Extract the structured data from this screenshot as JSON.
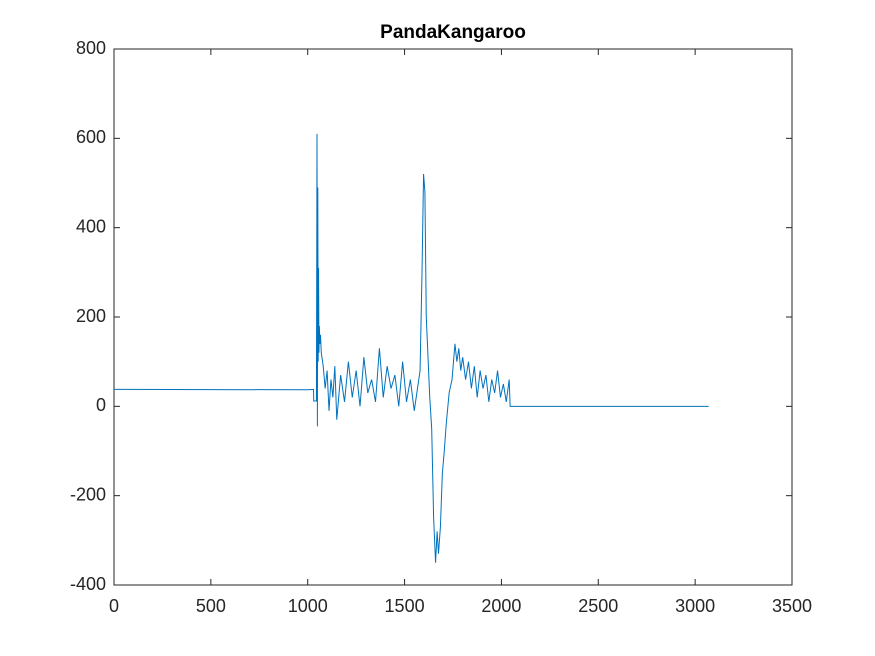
{
  "chart_data": {
    "type": "line",
    "title": "PandaKangaroo",
    "x": [
      0,
      1000,
      1030,
      1031,
      1045,
      1048,
      1050,
      1052,
      1054,
      1056,
      1058,
      1060,
      1063,
      1066,
      1070,
      1080,
      1090,
      1100,
      1110,
      1120,
      1130,
      1140,
      1150,
      1170,
      1190,
      1210,
      1230,
      1250,
      1270,
      1290,
      1310,
      1330,
      1350,
      1370,
      1390,
      1410,
      1430,
      1450,
      1470,
      1490,
      1510,
      1530,
      1550,
      1570,
      1580,
      1590,
      1598,
      1605,
      1612,
      1620,
      1630,
      1640,
      1650,
      1660,
      1668,
      1675,
      1685,
      1695,
      1705,
      1715,
      1730,
      1745,
      1760,
      1770,
      1780,
      1790,
      1800,
      1815,
      1830,
      1845,
      1860,
      1875,
      1890,
      1905,
      1920,
      1935,
      1950,
      1965,
      1980,
      1995,
      2010,
      2025,
      2040,
      2045,
      2050,
      3070
    ],
    "series": [
      {
        "color": "#0072bd",
        "values": [
          38,
          37,
          38,
          12,
          12,
          610,
          -45,
          490,
          100,
          310,
          120,
          180,
          140,
          160,
          120,
          90,
          40,
          80,
          -10,
          60,
          20,
          90,
          -30,
          70,
          10,
          100,
          20,
          80,
          0,
          110,
          30,
          60,
          10,
          130,
          20,
          90,
          40,
          70,
          0,
          100,
          10,
          60,
          -10,
          50,
          80,
          300,
          520,
          480,
          200,
          120,
          20,
          -50,
          -250,
          -350,
          -280,
          -330,
          -270,
          -150,
          -100,
          -40,
          30,
          60,
          140,
          100,
          130,
          80,
          110,
          60,
          100,
          40,
          90,
          20,
          80,
          40,
          70,
          10,
          60,
          30,
          80,
          20,
          50,
          10,
          60,
          0,
          0,
          0
        ]
      }
    ],
    "xlim": [
      0,
      3500
    ],
    "xticks": [
      0,
      500,
      1000,
      1500,
      2000,
      2500,
      3000,
      3500
    ],
    "ylim": [
      -400,
      800
    ],
    "yticks": [
      -400,
      -200,
      0,
      200,
      400,
      600,
      800
    ],
    "grid": false
  }
}
